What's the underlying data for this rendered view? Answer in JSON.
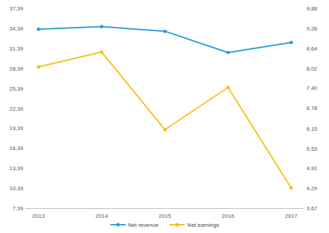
{
  "chart_data": {
    "type": "line",
    "categories": [
      "2013",
      "2014",
      "2015",
      "2016",
      "2017"
    ],
    "series": [
      {
        "name": "Net revenue",
        "color": "#2a9fd6",
        "marker": "circle",
        "values": [
          34.3,
          34.7,
          34.0,
          30.8,
          32.3
        ]
      },
      {
        "name": "Net earnings",
        "color": "#f7bf1e",
        "marker": "circle",
        "axis": "y2",
        "values": [
          8.07,
          8.53,
          6.12,
          7.43,
          4.31
        ]
      }
    ],
    "ylim": [
      7.39,
      37.39
    ],
    "yticks": [
      {
        "value": 7.39,
        "label": "7,39"
      },
      {
        "value": 10.39,
        "label": "10,39"
      },
      {
        "value": 13.39,
        "label": "13,39"
      },
      {
        "value": 16.39,
        "label": "16,39"
      },
      {
        "value": 19.39,
        "label": "19,39"
      },
      {
        "value": 22.39,
        "label": "22,39"
      },
      {
        "value": 25.39,
        "label": "25,39"
      },
      {
        "value": 28.39,
        "label": "28,39"
      },
      {
        "value": 31.39,
        "label": "31,39"
      },
      {
        "value": 34.39,
        "label": "34,39"
      },
      {
        "value": 37.39,
        "label": "37,39"
      }
    ],
    "y2lim": [
      3.67,
      9.88
    ],
    "y2ticks": [
      {
        "value": 3.67,
        "label": "3,67"
      },
      {
        "value": 4.29,
        "label": "4,29"
      },
      {
        "value": 4.91,
        "label": "4,91"
      },
      {
        "value": 5.53,
        "label": "5,53"
      },
      {
        "value": 6.15,
        "label": "6,15"
      },
      {
        "value": 6.78,
        "label": "6,78"
      },
      {
        "value": 7.4,
        "label": "7,40"
      },
      {
        "value": 8.02,
        "label": "8,02"
      },
      {
        "value": 8.64,
        "label": "8,64"
      },
      {
        "value": 9.26,
        "label": "9,26"
      },
      {
        "value": 9.88,
        "label": "9,88"
      }
    ],
    "grid": false,
    "legend": "bottom"
  }
}
